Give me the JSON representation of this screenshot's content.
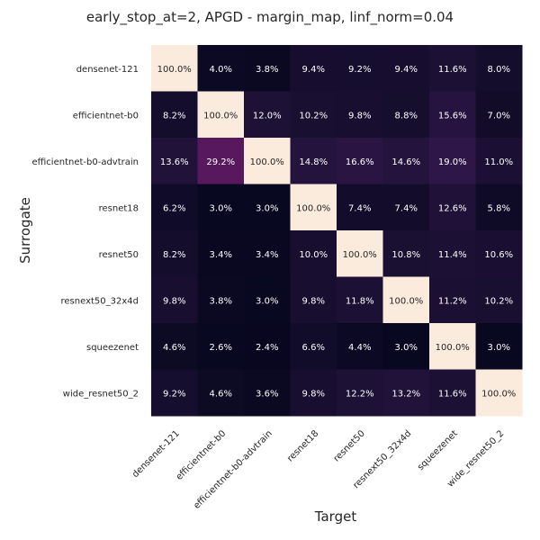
{
  "chart_data": {
    "type": "heatmap",
    "title": "early_stop_at=2, APGD - margin_map, linf_norm=0.04",
    "xlabel": "Target",
    "ylabel": "Surrogate",
    "columns": [
      "densenet-121",
      "efficientnet-b0",
      "efficientnet-b0-advtrain",
      "resnet18",
      "resnet50",
      "resnext50_32x4d",
      "squeezenet",
      "wide_resnet50_2"
    ],
    "rows": [
      "densenet-121",
      "efficientnet-b0",
      "efficientnet-b0-advtrain",
      "resnet18",
      "resnet50",
      "resnext50_32x4d",
      "squeezenet",
      "wide_resnet50_2"
    ],
    "values": [
      [
        100.0,
        4.0,
        3.8,
        9.4,
        9.2,
        9.4,
        11.6,
        8.0
      ],
      [
        8.2,
        100.0,
        12.0,
        10.2,
        9.8,
        8.8,
        15.6,
        7.0
      ],
      [
        13.6,
        29.2,
        100.0,
        14.8,
        16.6,
        14.6,
        19.0,
        11.0
      ],
      [
        6.2,
        3.0,
        3.0,
        100.0,
        7.4,
        7.4,
        12.6,
        5.8
      ],
      [
        8.2,
        3.4,
        3.4,
        10.0,
        100.0,
        10.8,
        11.4,
        10.6
      ],
      [
        9.8,
        3.8,
        3.0,
        9.8,
        11.8,
        100.0,
        11.2,
        10.2
      ],
      [
        4.6,
        2.6,
        2.4,
        6.6,
        4.4,
        3.0,
        100.0,
        3.0
      ],
      [
        9.2,
        4.6,
        3.6,
        9.8,
        12.2,
        13.2,
        11.6,
        100.0
      ]
    ],
    "value_format": "percent_1dp",
    "colormap": "rocket",
    "vmin": 0,
    "vmax": 100,
    "colorbar": false
  }
}
